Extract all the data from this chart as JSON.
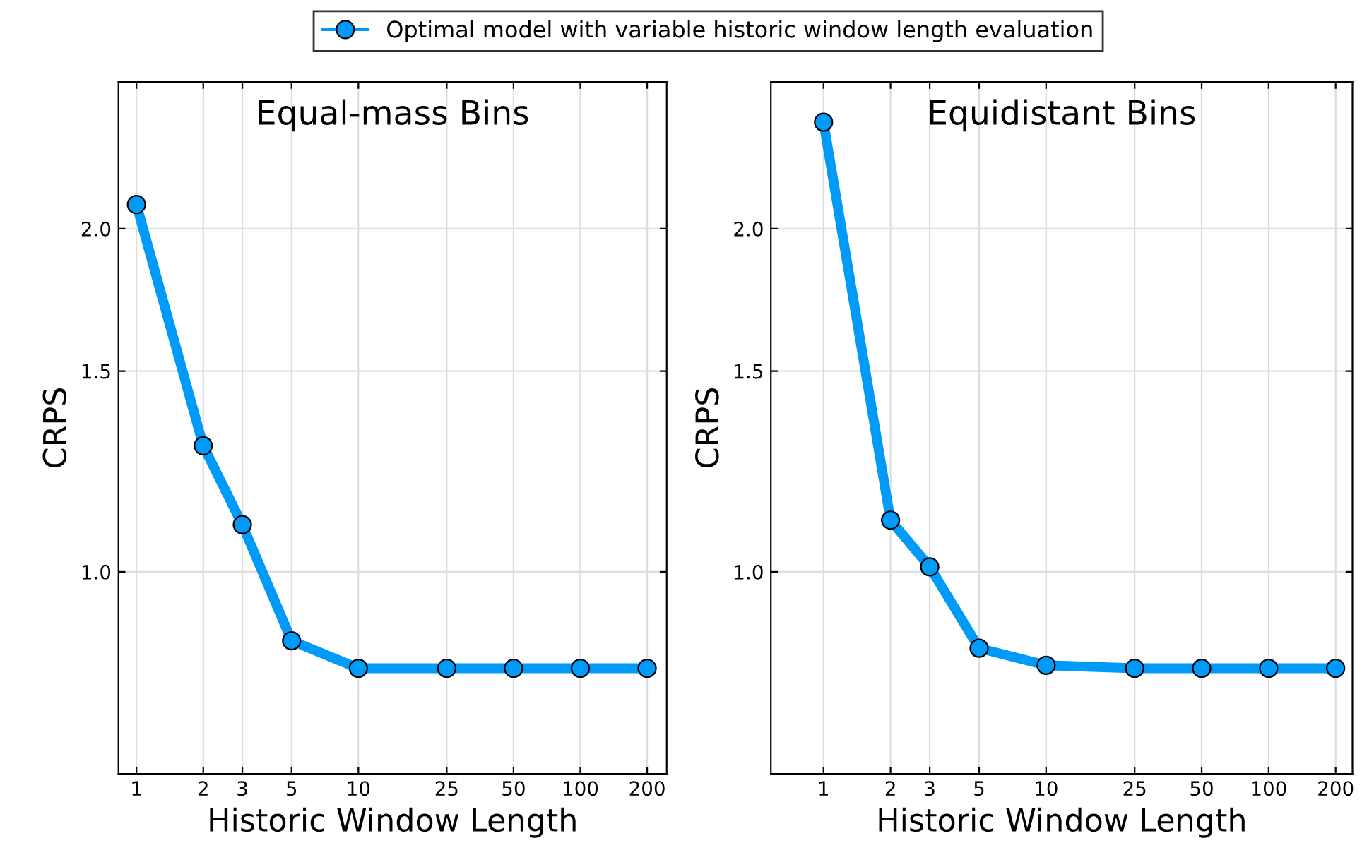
{
  "chart_data": [
    {
      "type": "line",
      "title": "Equal-mass Bins",
      "xlabel": "Historic Window Length",
      "ylabel": "CRPS",
      "x": [
        1,
        2,
        3,
        5,
        10,
        25,
        50,
        100,
        200
      ],
      "series": [
        {
          "name": "Optimal model with variable historic window length evaluation",
          "color": "#009af9",
          "values": [
            2.1,
            1.29,
            1.1,
            0.87,
            0.823,
            0.823,
            0.823,
            0.823,
            0.823
          ]
        }
      ],
      "log": "xy",
      "xlim": [
        0.83,
        245
      ],
      "ylim": [
        0.665,
        2.69
      ],
      "xticks": [
        1,
        2,
        3,
        5,
        10,
        25,
        50,
        100,
        200
      ],
      "yticks": [
        {
          "value": 1,
          "label": "1.0"
        },
        {
          "value": 1.5,
          "label": "1.5"
        },
        {
          "value": 2,
          "label": "2.0"
        }
      ],
      "grid": true,
      "marker": "circle",
      "legend": "top"
    },
    {
      "type": "line",
      "title": "Equidistant Bins",
      "xlabel": "Historic Window Length",
      "ylabel": "CRPS",
      "x": [
        1,
        2,
        3,
        5,
        10,
        25,
        50,
        100,
        200
      ],
      "series": [
        {
          "color": "#009af9",
          "values": [
            2.48,
            1.11,
            1.01,
            0.857,
            0.828,
            0.823,
            0.823,
            0.823,
            0.823
          ]
        }
      ],
      "log": "xy",
      "xlim": [
        0.58,
        238
      ],
      "ylim": [
        0.665,
        2.69
      ],
      "xticks": [
        1,
        2,
        3,
        5,
        10,
        25,
        50,
        100,
        200
      ],
      "yticks": [
        {
          "value": 1,
          "label": "1.0"
        },
        {
          "value": 1.5,
          "label": "1.5"
        },
        {
          "value": 2,
          "label": "2.0"
        }
      ],
      "grid": true,
      "marker": "circle"
    }
  ]
}
